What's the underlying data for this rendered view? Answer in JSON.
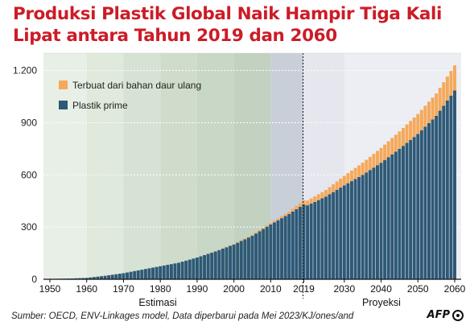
{
  "title_line1": "Produksi Plastik Global Naik Hampir Tiga Kali",
  "title_line2": "Lipat antara Tahun 2019 dan 2060",
  "source": "Sumber:  OECD, ENV-Linkages model, Data diperbarui pada Mei 2023/KJ/ones/and",
  "logo": "AFP",
  "colors": {
    "prime": "#2e5977",
    "recycled": "#f5a95b",
    "title": "#cc1c27",
    "zone_estimated": "#e4ede2",
    "zone_projected": "#e5e6ee"
  },
  "chart_data": {
    "type": "bar",
    "stacked": true,
    "x_start": 1950,
    "x_end": 2060,
    "split_year": 2019,
    "xticks": [
      "1950",
      "1960",
      "1970",
      "1980",
      "1990",
      "2000",
      "2010",
      "2019",
      "2030",
      "2040",
      "2050",
      "2060"
    ],
    "xtick_values": [
      1950,
      1960,
      1970,
      1980,
      1990,
      2000,
      2010,
      2019,
      2030,
      2040,
      2050,
      2060
    ],
    "yticks": [
      0,
      300,
      600,
      900,
      1200
    ],
    "ytick_labels": [
      "0",
      "300",
      "600",
      "900",
      "1.200"
    ],
    "ylim": [
      0,
      1300
    ],
    "zone_labels": {
      "estimated": "Estimasi",
      "projected": "Proyeksi"
    },
    "legend_position": "top-left",
    "series": [
      {
        "name": "Plastik prime",
        "color": "#2e5977",
        "anchors": [
          [
            1950,
            2
          ],
          [
            1955,
            4
          ],
          [
            1960,
            8
          ],
          [
            1965,
            20
          ],
          [
            1970,
            35
          ],
          [
            1975,
            55
          ],
          [
            1980,
            75
          ],
          [
            1985,
            95
          ],
          [
            1990,
            125
          ],
          [
            1995,
            160
          ],
          [
            2000,
            200
          ],
          [
            2005,
            250
          ],
          [
            2010,
            315
          ],
          [
            2015,
            375
          ],
          [
            2019,
            430
          ],
          [
            2020,
            425
          ],
          [
            2025,
            475
          ],
          [
            2030,
            540
          ],
          [
            2035,
            600
          ],
          [
            2040,
            670
          ],
          [
            2045,
            750
          ],
          [
            2050,
            835
          ],
          [
            2055,
            940
          ],
          [
            2060,
            1085
          ]
        ]
      },
      {
        "name": "Terbuat dari bahan daur ulang",
        "color": "#f5a95b",
        "anchors": [
          [
            1950,
            0
          ],
          [
            1990,
            0
          ],
          [
            2000,
            2
          ],
          [
            2010,
            8
          ],
          [
            2015,
            14
          ],
          [
            2019,
            25
          ],
          [
            2025,
            38
          ],
          [
            2030,
            55
          ],
          [
            2035,
            70
          ],
          [
            2040,
            85
          ],
          [
            2045,
            100
          ],
          [
            2050,
            115
          ],
          [
            2055,
            128
          ],
          [
            2060,
            145
          ]
        ]
      }
    ]
  }
}
